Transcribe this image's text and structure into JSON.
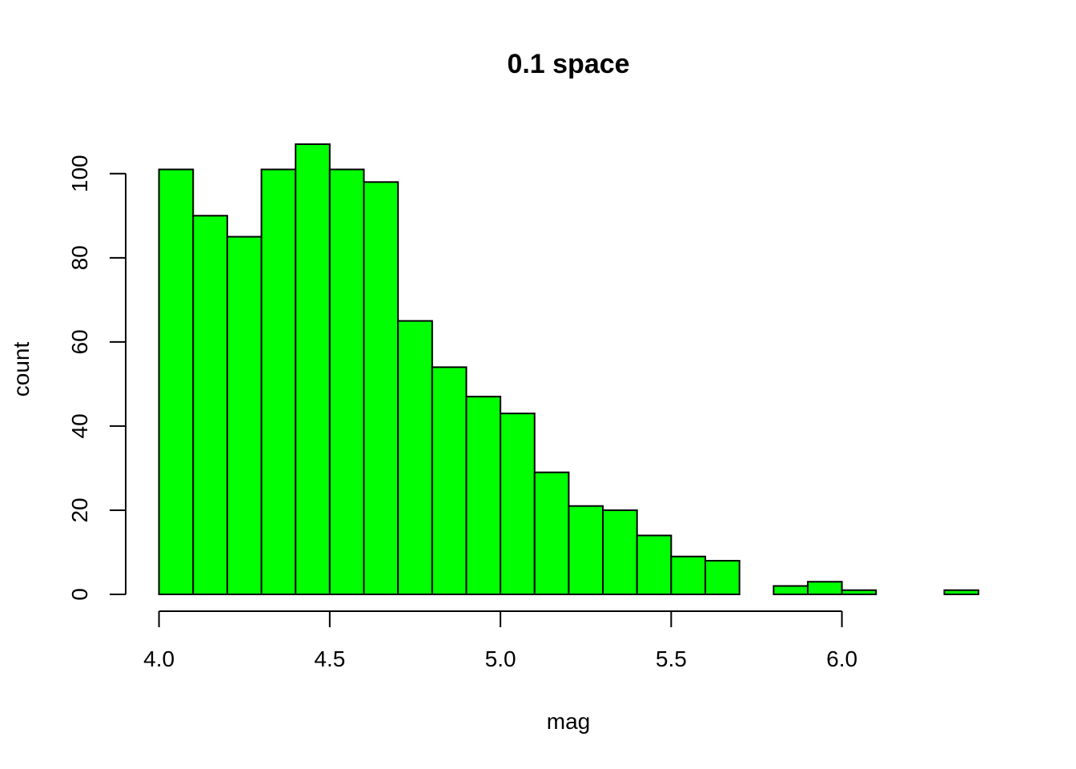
{
  "chart_data": {
    "type": "bar",
    "subtype": "histogram",
    "title": "0.1 space",
    "xlabel": "mag",
    "ylabel": "count",
    "bin_width": 0.1,
    "bins": [
      {
        "start": 4.0,
        "end": 4.1,
        "count": 101
      },
      {
        "start": 4.1,
        "end": 4.2,
        "count": 90
      },
      {
        "start": 4.2,
        "end": 4.3,
        "count": 85
      },
      {
        "start": 4.3,
        "end": 4.4,
        "count": 101
      },
      {
        "start": 4.4,
        "end": 4.5,
        "count": 107
      },
      {
        "start": 4.5,
        "end": 4.6,
        "count": 101
      },
      {
        "start": 4.6,
        "end": 4.7,
        "count": 98
      },
      {
        "start": 4.7,
        "end": 4.8,
        "count": 65
      },
      {
        "start": 4.8,
        "end": 4.9,
        "count": 54
      },
      {
        "start": 4.9,
        "end": 5.0,
        "count": 47
      },
      {
        "start": 5.0,
        "end": 5.1,
        "count": 43
      },
      {
        "start": 5.1,
        "end": 5.2,
        "count": 29
      },
      {
        "start": 5.2,
        "end": 5.3,
        "count": 21
      },
      {
        "start": 5.3,
        "end": 5.4,
        "count": 20
      },
      {
        "start": 5.4,
        "end": 5.5,
        "count": 14
      },
      {
        "start": 5.5,
        "end": 5.6,
        "count": 9
      },
      {
        "start": 5.6,
        "end": 5.7,
        "count": 8
      },
      {
        "start": 5.7,
        "end": 5.8,
        "count": 0
      },
      {
        "start": 5.8,
        "end": 5.9,
        "count": 2
      },
      {
        "start": 5.9,
        "end": 6.0,
        "count": 3
      },
      {
        "start": 6.0,
        "end": 6.1,
        "count": 1
      },
      {
        "start": 6.1,
        "end": 6.2,
        "count": 0
      },
      {
        "start": 6.2,
        "end": 6.3,
        "count": 0
      },
      {
        "start": 6.3,
        "end": 6.4,
        "count": 1
      }
    ],
    "xlim": [
      4.0,
      6.4
    ],
    "ylim": [
      0,
      107
    ],
    "x_ticks": [
      4.0,
      4.5,
      5.0,
      5.5,
      6.0
    ],
    "x_tick_labels": [
      "4.0",
      "4.5",
      "5.0",
      "5.5",
      "6.0"
    ],
    "y_ticks": [
      0,
      20,
      40,
      60,
      80,
      100
    ],
    "y_tick_labels": [
      "0",
      "20",
      "40",
      "60",
      "80",
      "100"
    ],
    "grid": false,
    "legend": "none",
    "bar_color": "#00ff00",
    "edge_color": "#000000"
  }
}
